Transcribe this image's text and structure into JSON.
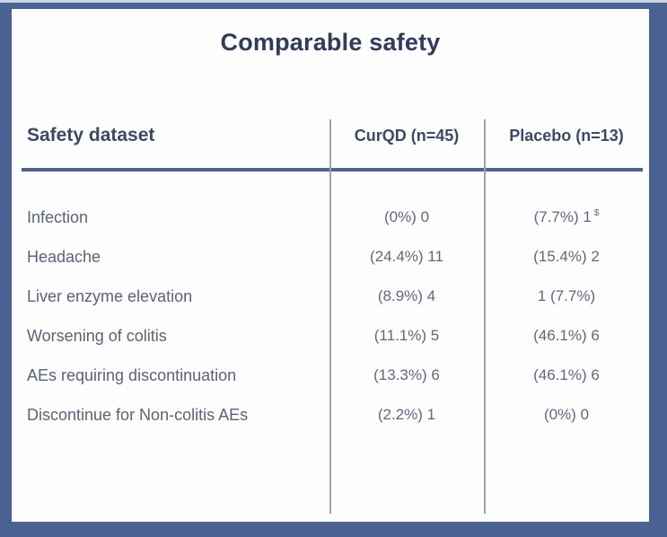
{
  "title": "Comparable safety",
  "table": {
    "header": {
      "col1": "Safety dataset",
      "col2": "CurQD (n=45)",
      "col3": "Placebo (n=13)"
    },
    "rows": [
      {
        "label": "Infection",
        "curqd": "(0%) 0",
        "placebo": "(7.7%) 1",
        "placebo_note": "$"
      },
      {
        "label": "Headache",
        "curqd": "(24.4%) 11",
        "placebo": "(15.4%) 2"
      },
      {
        "label": "Liver enzyme elevation",
        "curqd": "(8.9%) 4",
        "placebo": "1 (7.7%)"
      },
      {
        "label": "Worsening of colitis",
        "curqd": "(11.1%) 5",
        "placebo": "(46.1%) 6"
      },
      {
        "label": "AEs requiring discontinuation",
        "curqd": "(13.3%) 6",
        "placebo": "(46.1%) 6"
      },
      {
        "label": "Discontinue for Non-colitis AEs",
        "curqd": "(2.2%) 1",
        "placebo": "(0%) 0"
      }
    ]
  },
  "chart_data": {
    "type": "table",
    "title": "Comparable safety",
    "columns": [
      "Safety dataset",
      "CurQD (n=45)",
      "Placebo (n=13)"
    ],
    "rows": [
      [
        "Infection",
        "(0%) 0",
        "(7.7%) 1 $"
      ],
      [
        "Headache",
        "(24.4%) 11",
        "(15.4%) 2"
      ],
      [
        "Liver enzyme elevation",
        "(8.9%) 4",
        "1 (7.7%)"
      ],
      [
        "Worsening of colitis",
        "(11.1%) 5",
        "(46.1%) 6"
      ],
      [
        "AEs requiring discontinuation",
        "(13.3%) 6",
        "(46.1%) 6"
      ],
      [
        "Discontinue for Non-colitis AEs",
        "(2.2%) 1",
        "(0%) 0"
      ]
    ],
    "notes": [
      "$ footnote marker on Infection / Placebo value"
    ]
  },
  "colors": {
    "frame": "#4a6292",
    "rule": "#50648a",
    "divider": "#9aa3b2",
    "title": "#303c59",
    "header": "#3d4964",
    "label": "#5a6378",
    "value": "#5f6880"
  }
}
